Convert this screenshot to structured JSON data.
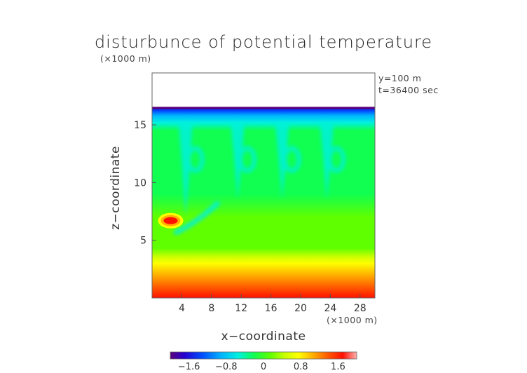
{
  "chart_data": {
    "type": "heatmap",
    "title": "disturbunce of potential temperature",
    "z_unit_label": "(×1000 m)",
    "x_unit_label": "(×1000 m)",
    "xlabel": "x−coordinate",
    "ylabel": "z−coordinate",
    "info_lines": [
      "y=100 m",
      "t=36400 sec"
    ],
    "xlim": [
      0,
      30
    ],
    "ylim": [
      0,
      19.5
    ],
    "x_ticks": [
      4,
      8,
      12,
      16,
      20,
      24,
      28
    ],
    "y_ticks": [
      5,
      10,
      15
    ],
    "colorbar": {
      "range": [
        -2,
        2
      ],
      "tick_values": [
        -1.6,
        -0.8,
        0,
        0.8,
        1.6
      ],
      "tick_labels": [
        "−1.6",
        "−0.8",
        "0",
        "0.8",
        "1.6"
      ]
    },
    "field_top": 16.5,
    "features": {
      "warm_bubble": {
        "x": 2.5,
        "z": 6.7,
        "peak": 1.7
      },
      "plumes_x": [
        4.5,
        11.5,
        17.5,
        23.5
      ],
      "cool_band_z": [
        15,
        16.4
      ],
      "warm_surface_z": [
        0,
        3.5
      ]
    }
  }
}
